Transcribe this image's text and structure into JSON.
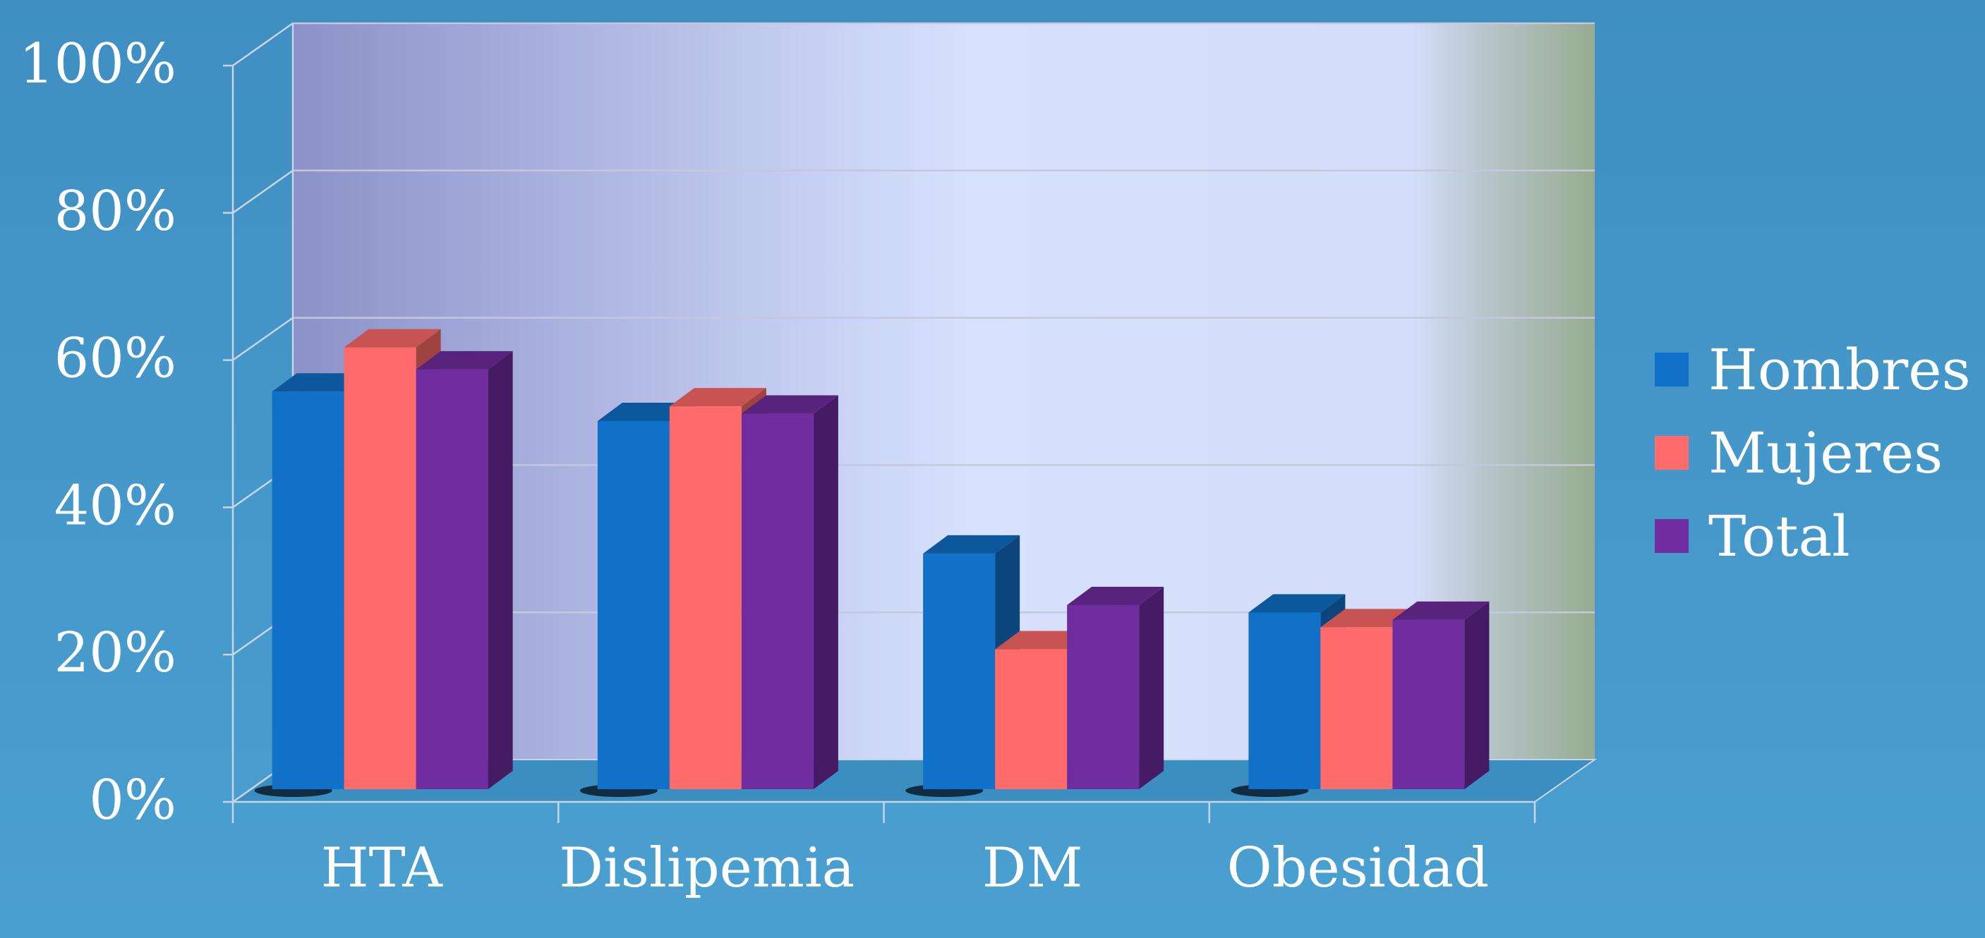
{
  "chart_data": {
    "type": "bar",
    "categories": [
      "HTA",
      "Dislipemia",
      "DM",
      "Obesidad"
    ],
    "series": [
      {
        "name": "Hombres",
        "values": [
          54,
          50,
          32,
          24
        ],
        "color": "#1170c8"
      },
      {
        "name": "Mujeres",
        "values": [
          60,
          52,
          19,
          22
        ],
        "color": "#ff6b6b"
      },
      {
        "name": "Total",
        "values": [
          57,
          51,
          25,
          23
        ],
        "color": "#6f2da0"
      }
    ],
    "ylim": [
      0,
      100
    ],
    "yticks": [
      "0%",
      "20%",
      "40%",
      "60%",
      "80%",
      "100%"
    ],
    "ytick_values": [
      0,
      20,
      40,
      60,
      80,
      100
    ],
    "grid": true,
    "legend": "right",
    "three_d": true
  }
}
